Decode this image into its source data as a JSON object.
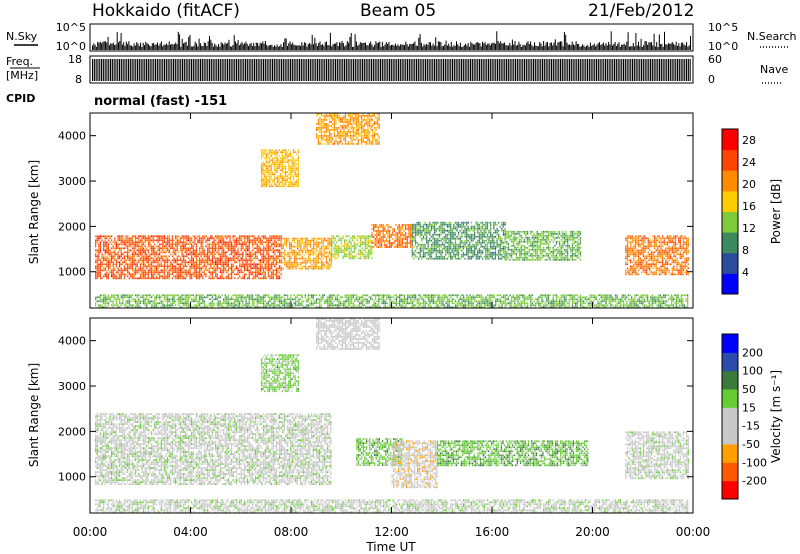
{
  "header": {
    "station": "Hokkaido (fitACF)",
    "beam": "Beam 05",
    "date": "21/Feb/2012"
  },
  "strip": {
    "nsky_label": "N.Sky",
    "nsearch_label": "N.Search",
    "freq_label_top": "Freq.",
    "freq_label_unit": "[MHz]",
    "nave_label": "Nave",
    "cpid_label": "CPID",
    "noise_ticks_left": [
      "10^5",
      "10^0"
    ],
    "noise_ticks_right": [
      "10^5",
      "10^0"
    ],
    "freq_ticks": [
      "18",
      "8"
    ],
    "nave_ticks": [
      "60",
      "0"
    ],
    "cpid_text": "normal (fast) -151"
  },
  "colors": {
    "power_scale": [
      "#0000ff",
      "#2a4c9c",
      "#3d8a5e",
      "#7ecb3a",
      "#ffcc00",
      "#ff8c00",
      "#ff4500",
      "#ff0000"
    ],
    "velocity_scale": [
      "#ff0000",
      "#ff5a00",
      "#ffa000",
      "#c8c8c8",
      "#c8c8c8",
      "#66cc33",
      "#3a7a3a",
      "#2a4caa",
      "#0000ff"
    ]
  },
  "chart_data": [
    {
      "type": "heatmap",
      "panel": "power",
      "title": "",
      "xlabel": "",
      "ylabel": "Slant Range [km]",
      "x_ticks": [
        "00:00",
        "04:00",
        "08:00",
        "12:00",
        "16:00",
        "20:00",
        "00:00"
      ],
      "y_ticks": [
        1000,
        2000,
        3000,
        4000
      ],
      "ylim": [
        200,
        4500
      ],
      "xlim_hours": [
        0,
        24
      ],
      "colorbar_label": "Power [dB]",
      "colorbar_ticks": [
        4,
        8,
        12,
        16,
        20,
        24,
        28
      ],
      "colorbar_range": [
        0,
        30
      ],
      "regions": [
        {
          "x": [
            0.2,
            7.6
          ],
          "y": [
            850,
            1800
          ],
          "value": 24
        },
        {
          "x": [
            7.6,
            9.6
          ],
          "y": [
            1050,
            1750
          ],
          "value": 20
        },
        {
          "x": [
            9.6,
            11.2
          ],
          "y": [
            1300,
            1800
          ],
          "value": 14
        },
        {
          "x": [
            11.2,
            12.8
          ],
          "y": [
            1550,
            2050
          ],
          "value": 22
        },
        {
          "x": [
            12.8,
            16.5
          ],
          "y": [
            1300,
            2100
          ],
          "value": 10
        },
        {
          "x": [
            16.5,
            19.5
          ],
          "y": [
            1250,
            1900
          ],
          "value": 12
        },
        {
          "x": [
            21.3,
            23.8
          ],
          "y": [
            950,
            1800
          ],
          "value": 22
        },
        {
          "x": [
            6.8,
            8.3
          ],
          "y": [
            2900,
            3700
          ],
          "value": 18
        },
        {
          "x": [
            9.0,
            11.5
          ],
          "y": [
            3800,
            4500
          ],
          "value": 20
        },
        {
          "x": [
            0.2,
            23.8
          ],
          "y": [
            200,
            500
          ],
          "value": 12
        }
      ]
    },
    {
      "type": "heatmap",
      "panel": "velocity",
      "title": "",
      "xlabel": "Time UT",
      "ylabel": "Slant Range [km]",
      "x_ticks": [
        "00:00",
        "04:00",
        "08:00",
        "12:00",
        "16:00",
        "20:00",
        "00:00"
      ],
      "y_ticks": [
        1000,
        2000,
        3000,
        4000
      ],
      "ylim": [
        200,
        4500
      ],
      "xlim_hours": [
        0,
        24
      ],
      "colorbar_label": "Velocity [m s⁻¹]",
      "colorbar_ticks": [
        200,
        100,
        50,
        15,
        -15,
        -50,
        -100,
        -200
      ],
      "colorbar_range": [
        -250,
        250
      ],
      "regions": [
        {
          "x": [
            0.2,
            9.6
          ],
          "y": [
            850,
            2400
          ],
          "value": 0
        },
        {
          "x": [
            10.6,
            12.4
          ],
          "y": [
            1250,
            1850
          ],
          "value": 50
        },
        {
          "x": [
            12.0,
            13.8
          ],
          "y": [
            750,
            1800
          ],
          "value": -60
        },
        {
          "x": [
            13.8,
            19.8
          ],
          "y": [
            1250,
            1800
          ],
          "value": 60
        },
        {
          "x": [
            21.3,
            23.8
          ],
          "y": [
            950,
            2000
          ],
          "value": 0
        },
        {
          "x": [
            6.8,
            8.3
          ],
          "y": [
            2900,
            3700
          ],
          "value": 40
        },
        {
          "x": [
            9.0,
            11.5
          ],
          "y": [
            3800,
            4500
          ],
          "value": -30
        },
        {
          "x": [
            0.2,
            23.8
          ],
          "y": [
            200,
            500
          ],
          "value": 0
        }
      ]
    }
  ]
}
